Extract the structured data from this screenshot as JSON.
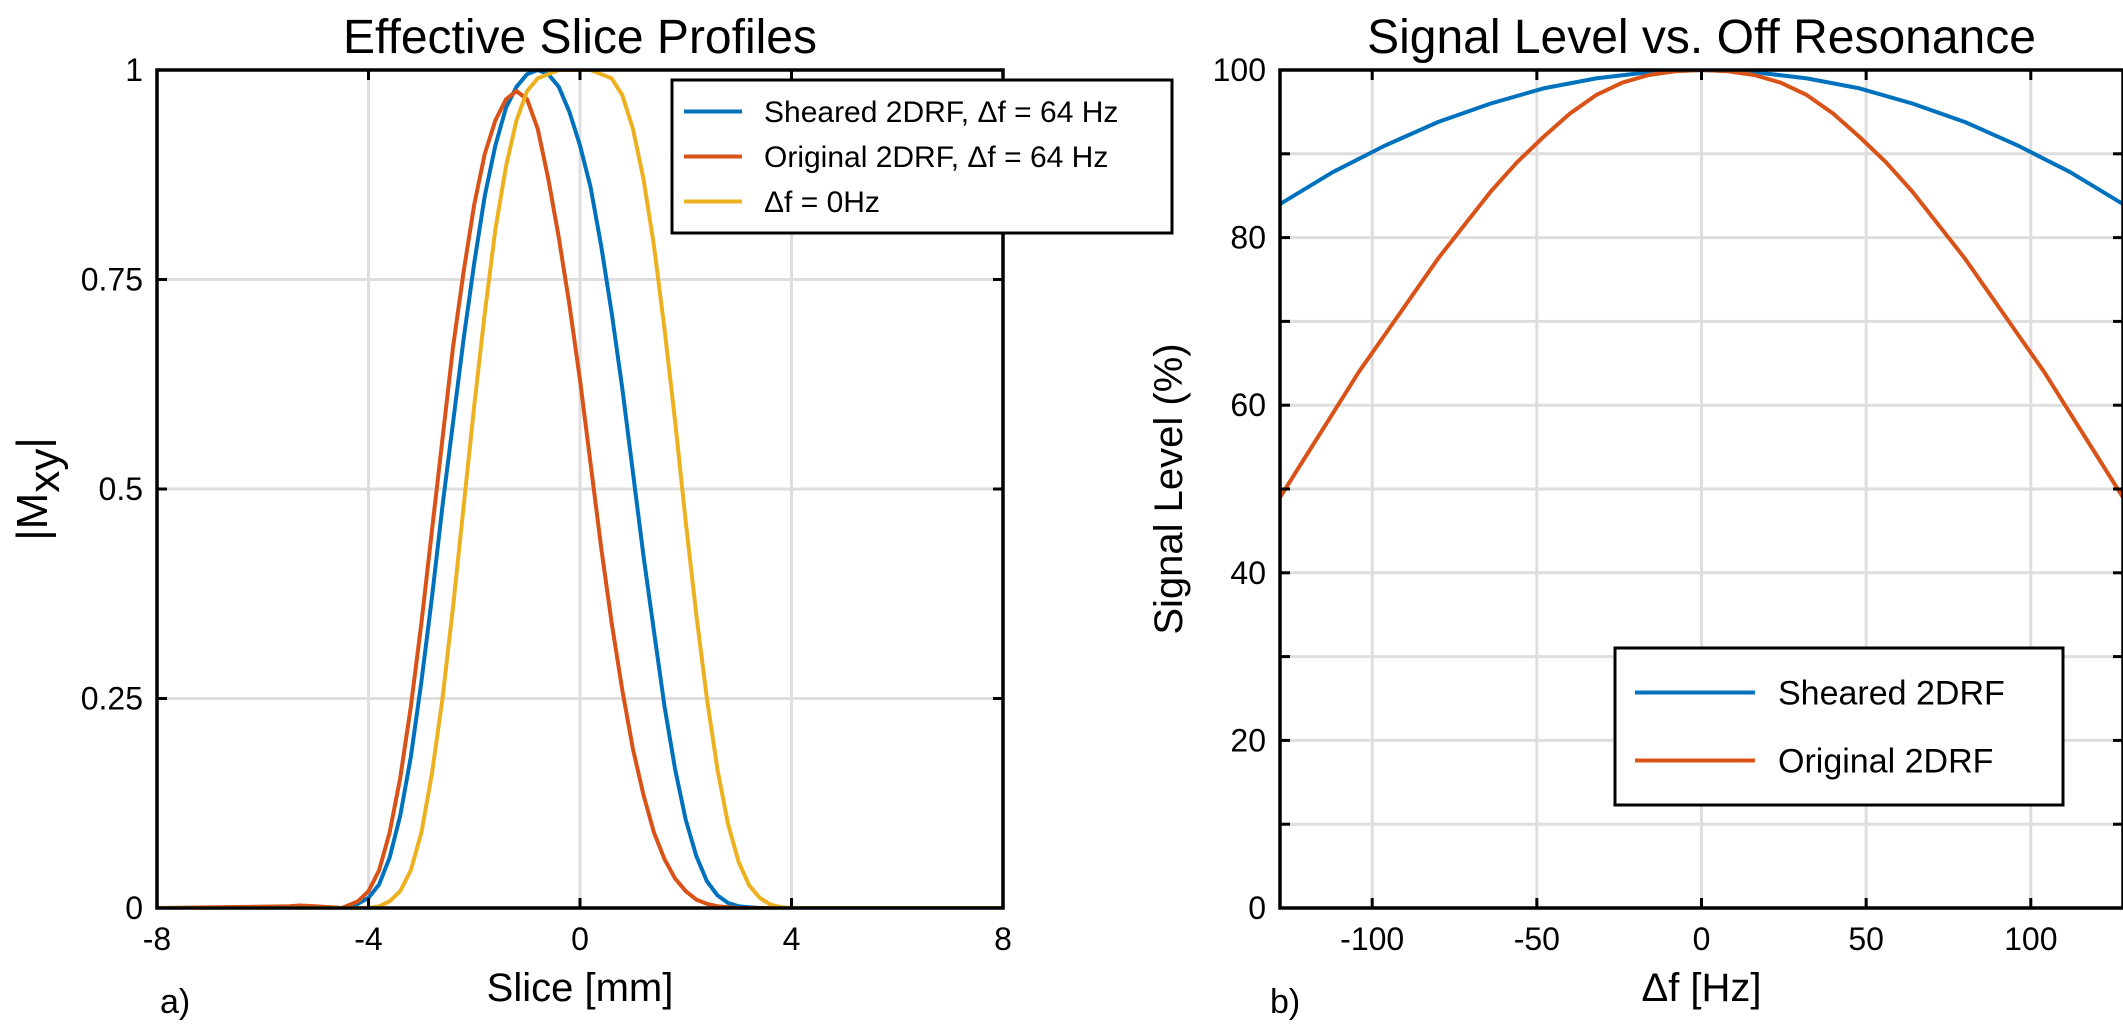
{
  "chart_data": [
    {
      "type": "line",
      "panel_label": "a)",
      "title": "Effective Slice Profiles",
      "xlabel": "Slice [mm]",
      "ylabel": "|M",
      "ylabel_sub": "xy",
      "ylabel_end": "|",
      "xlim": [
        -8,
        8
      ],
      "ylim": [
        0,
        1
      ],
      "xticks": [
        -8,
        -4,
        0,
        4,
        8
      ],
      "xtick_labels": [
        "-8",
        "-4",
        "0",
        "4",
        "8"
      ],
      "yticks": [
        0,
        0.25,
        0.5,
        0.75,
        1
      ],
      "ytick_labels": [
        "0",
        "0.25",
        "0.5",
        "0.75",
        "1"
      ],
      "grid": true,
      "legend_position": "top-right",
      "series": [
        {
          "name": "Sheared 2DRF, Δf = 64 Hz",
          "color": "#0072BD",
          "x": [
            -8,
            -5,
            -4.5,
            -4.2,
            -4,
            -3.8,
            -3.6,
            -3.4,
            -3.2,
            -3,
            -2.8,
            -2.6,
            -2.4,
            -2.2,
            -2,
            -1.8,
            -1.6,
            -1.4,
            -1.2,
            -1,
            -0.8,
            -0.6,
            -0.4,
            -0.2,
            0,
            0.2,
            0.4,
            0.6,
            0.8,
            1,
            1.2,
            1.4,
            1.6,
            1.8,
            2,
            2.2,
            2.4,
            2.6,
            2.8,
            3,
            3.2,
            3.4,
            3.6,
            3.8,
            4,
            5,
            8
          ],
          "y": [
            0,
            0,
            0,
            0.005,
            0.012,
            0.028,
            0.06,
            0.11,
            0.18,
            0.27,
            0.37,
            0.48,
            0.58,
            0.68,
            0.77,
            0.85,
            0.91,
            0.955,
            0.98,
            0.995,
            1.0,
            0.995,
            0.98,
            0.95,
            0.91,
            0.86,
            0.79,
            0.71,
            0.62,
            0.52,
            0.42,
            0.33,
            0.24,
            0.165,
            0.105,
            0.062,
            0.032,
            0.015,
            0.006,
            0.002,
            0.001,
            0,
            0,
            0,
            0,
            0,
            0
          ]
        },
        {
          "name": "Original 2DRF, Δf = 64 Hz",
          "color": "#D95319",
          "x": [
            -8,
            -5.5,
            -5.3,
            -5,
            -4.5,
            -4.2,
            -4,
            -3.8,
            -3.6,
            -3.4,
            -3.2,
            -3,
            -2.8,
            -2.6,
            -2.4,
            -2.2,
            -2,
            -1.8,
            -1.6,
            -1.4,
            -1.2,
            -1,
            -0.8,
            -0.6,
            -0.4,
            -0.2,
            0,
            0.2,
            0.4,
            0.6,
            0.8,
            1,
            1.2,
            1.4,
            1.6,
            1.8,
            2,
            2.2,
            2.4,
            2.6,
            2.8,
            3,
            3.2,
            3.4,
            4,
            8
          ],
          "y": [
            0,
            0.002,
            0.003,
            0.002,
            0,
            0.008,
            0.02,
            0.045,
            0.09,
            0.155,
            0.24,
            0.34,
            0.45,
            0.56,
            0.67,
            0.76,
            0.84,
            0.9,
            0.94,
            0.965,
            0.975,
            0.965,
            0.93,
            0.87,
            0.8,
            0.72,
            0.63,
            0.53,
            0.43,
            0.34,
            0.26,
            0.19,
            0.135,
            0.09,
            0.058,
            0.035,
            0.02,
            0.01,
            0.005,
            0.002,
            0.001,
            0,
            0,
            0,
            0,
            0
          ]
        },
        {
          "name": "Δf = 0Hz",
          "color": "#EDB120",
          "x": [
            -8,
            -4,
            -3.8,
            -3.6,
            -3.4,
            -3.2,
            -3,
            -2.8,
            -2.6,
            -2.4,
            -2.2,
            -2,
            -1.8,
            -1.6,
            -1.4,
            -1.2,
            -1,
            -0.8,
            -0.6,
            -0.4,
            -0.2,
            0,
            0.2,
            0.4,
            0.6,
            0.8,
            1,
            1.2,
            1.4,
            1.6,
            1.8,
            2,
            2.2,
            2.4,
            2.6,
            2.8,
            3,
            3.2,
            3.4,
            3.6,
            3.8,
            4,
            8
          ],
          "y": [
            0,
            0,
            0.002,
            0.008,
            0.02,
            0.045,
            0.09,
            0.16,
            0.25,
            0.36,
            0.48,
            0.6,
            0.71,
            0.81,
            0.885,
            0.94,
            0.975,
            0.99,
            0.995,
            1.0,
            1.0,
            1.0,
            1.0,
            0.995,
            0.99,
            0.97,
            0.93,
            0.87,
            0.79,
            0.69,
            0.58,
            0.46,
            0.35,
            0.25,
            0.165,
            0.1,
            0.055,
            0.027,
            0.012,
            0.004,
            0.001,
            0,
            0
          ]
        }
      ]
    },
    {
      "type": "line",
      "panel_label": "b)",
      "title": "Signal Level vs. Off Resonance",
      "xlabel": "Δf [Hz]",
      "ylabel": "Signal Level (%)",
      "xlim": [
        -128,
        128
      ],
      "ylim": [
        0,
        100
      ],
      "xticks": [
        -100,
        -50,
        0,
        50,
        100
      ],
      "xtick_labels": [
        "-100",
        "-50",
        "0",
        "50",
        "100"
      ],
      "yticks": [
        0,
        20,
        40,
        60,
        80,
        100
      ],
      "ytick_labels": [
        "0",
        "20",
        "40",
        "60",
        "80",
        "100"
      ],
      "minor_gridlines": [
        10,
        30,
        50,
        70,
        90
      ],
      "grid": true,
      "legend_position": "bottom-right",
      "series": [
        {
          "name": "Sheared 2DRF",
          "color": "#0072BD",
          "x": [
            -128,
            -112,
            -96,
            -80,
            -64,
            -48,
            -32,
            -16,
            0,
            16,
            32,
            48,
            64,
            80,
            96,
            112,
            128
          ],
          "y": [
            84,
            87.8,
            91,
            93.8,
            96,
            97.8,
            99,
            99.75,
            100,
            99.75,
            99,
            97.8,
            96,
            93.8,
            91,
            87.8,
            84
          ]
        },
        {
          "name": "Original 2DRF",
          "color": "#D95319",
          "x": [
            -128,
            -120,
            -112,
            -104,
            -96,
            -88,
            -80,
            -72,
            -64,
            -56,
            -48,
            -40,
            -32,
            -24,
            -16,
            -8,
            0,
            8,
            16,
            24,
            32,
            40,
            48,
            56,
            64,
            72,
            80,
            88,
            96,
            104,
            112,
            120,
            128
          ],
          "y": [
            49,
            54,
            59,
            64,
            68.5,
            73,
            77.5,
            81.5,
            85.5,
            89,
            92,
            94.8,
            97,
            98.5,
            99.4,
            99.85,
            100,
            99.85,
            99.4,
            98.5,
            97,
            94.8,
            92,
            89,
            85.5,
            81.5,
            77.5,
            73,
            68.5,
            64,
            59,
            54,
            49
          ]
        }
      ]
    }
  ]
}
